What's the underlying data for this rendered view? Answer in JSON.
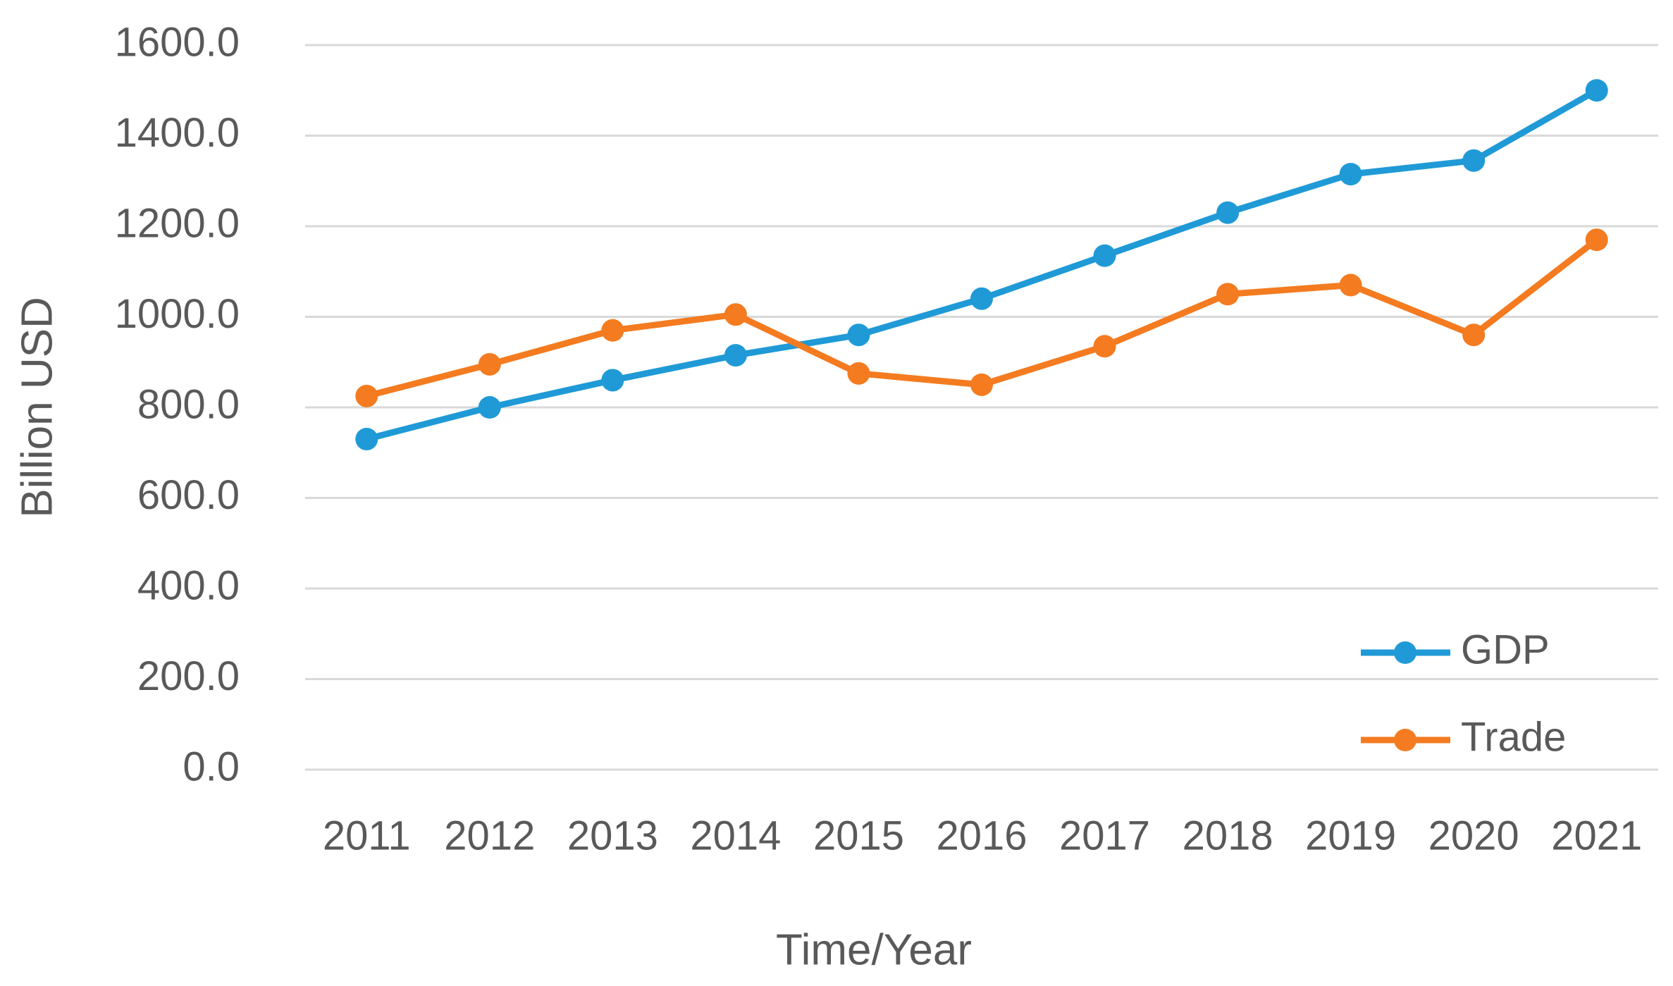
{
  "chart_data": {
    "type": "line",
    "x_label": "Time/Year",
    "y_label": "Billion USD",
    "categories": [
      "2011",
      "2012",
      "2013",
      "2014",
      "2015",
      "2016",
      "2017",
      "2018",
      "2019",
      "2020",
      "2021"
    ],
    "series": [
      {
        "name": "GDP",
        "color": "#1f9ad6",
        "values": [
          730,
          800,
          860,
          915,
          960,
          1040,
          1135,
          1230,
          1315,
          1345,
          1500
        ]
      },
      {
        "name": "Trade",
        "color": "#f47b20",
        "values": [
          825,
          895,
          970,
          1005,
          875,
          850,
          935,
          1050,
          1070,
          960,
          1170
        ]
      }
    ],
    "ylim": [
      0,
      1600
    ],
    "yticks": [
      {
        "value": 0,
        "label": "0.0"
      },
      {
        "value": 200,
        "label": "200.0"
      },
      {
        "value": 400,
        "label": "400.0"
      },
      {
        "value": 600,
        "label": "600.0"
      },
      {
        "value": 800,
        "label": "800.0"
      },
      {
        "value": 1000,
        "label": "1000.0"
      },
      {
        "value": 1200,
        "label": "1200.0"
      },
      {
        "value": 1400,
        "label": "1400.0"
      },
      {
        "value": 1600,
        "label": "1600.0"
      }
    ],
    "grid": true,
    "legend": "lower right"
  }
}
